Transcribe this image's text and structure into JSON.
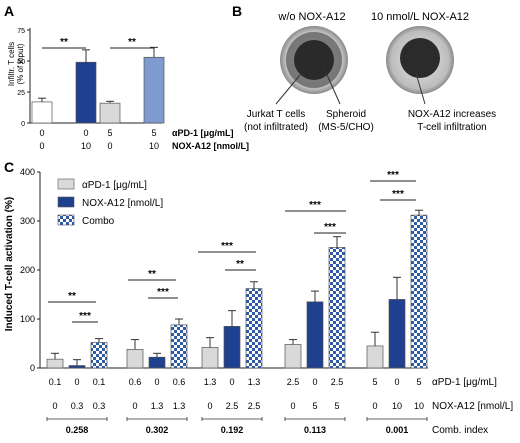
{
  "panels": {
    "A": {
      "letter": "A",
      "ylabel_line1": "Infiltr. T cells",
      "ylabel_line2": "(% of input)",
      "row_labels": [
        "αPD-1 [μg/mL]",
        "NOX-A12 [nmol/L]"
      ],
      "significance": [
        "**",
        "**"
      ]
    },
    "B": {
      "letter": "B",
      "image_titles": [
        "w/o NOX-A12",
        "10 nmol/L NOX-A12"
      ],
      "annotations": [
        {
          "line1": "Jurkat T cells",
          "line2": "(not infiltrated)"
        },
        {
          "line1": "Spheroid",
          "line2": "(MS-5/CHO)"
        },
        {
          "line1": "NOX-A12 increases",
          "line2": "T-cell infiltration"
        }
      ]
    },
    "C": {
      "letter": "C",
      "ylabel": "Induced T-cell activation (%)",
      "row_labels": [
        "αPD-1 [μg/mL]",
        "NOX-A12 [nmol/L]",
        "Comb. index"
      ],
      "significance": [
        "**",
        "***",
        "**",
        "***",
        "***",
        "**",
        "***",
        "***",
        "***",
        "***"
      ]
    }
  },
  "colors": {
    "light": "#d9d9d9",
    "dark": "#1f3f8f",
    "light_blue": "#7f9bd0",
    "check": "#2e5aa8",
    "white": "#ffffff"
  },
  "chart_data": [
    {
      "panel": "A",
      "type": "bar",
      "ylim": [
        0,
        75
      ],
      "yticks": [
        0,
        25,
        50,
        75
      ],
      "bars": [
        {
          "apd1": "0",
          "nox": "0",
          "value": 17,
          "err": 3,
          "style": "white"
        },
        {
          "apd1": "0",
          "nox": "10",
          "value": 49,
          "err": 10,
          "style": "dark"
        },
        {
          "apd1": "5",
          "nox": "0",
          "value": 16,
          "err": 1.5,
          "style": "light"
        },
        {
          "apd1": "5",
          "nox": "10",
          "value": 53,
          "err": 8,
          "style": "light_blue"
        }
      ]
    },
    {
      "panel": "C",
      "type": "bar",
      "ylim": [
        0,
        400
      ],
      "yticks": [
        0,
        100,
        200,
        300,
        400
      ],
      "legend": {
        "placement": "top-left",
        "entries": [
          {
            "label": "αPD-1 [μg/mL]",
            "style": "light"
          },
          {
            "label": "NOX-A12 [nmol/L]",
            "style": "dark"
          },
          {
            "label": "Combo",
            "style": "check"
          }
        ]
      },
      "groups": [
        {
          "comb_index": "0.258",
          "bars": [
            {
              "apd1": "0.1",
              "nox": "0",
              "value": 18,
              "err": 12,
              "style": "light"
            },
            {
              "apd1": "0",
              "nox": "0.3",
              "value": 5,
              "err": 12,
              "style": "dark"
            },
            {
              "apd1": "0.1",
              "nox": "0.3",
              "value": 52,
              "err": 8,
              "style": "check"
            }
          ]
        },
        {
          "comb_index": "0.302",
          "bars": [
            {
              "apd1": "0.6",
              "nox": "0",
              "value": 38,
              "err": 20,
              "style": "light"
            },
            {
              "apd1": "0",
              "nox": "1.3",
              "value": 22,
              "err": 8,
              "style": "dark"
            },
            {
              "apd1": "0.6",
              "nox": "1.3",
              "value": 88,
              "err": 12,
              "style": "check"
            }
          ]
        },
        {
          "comb_index": "0.192",
          "bars": [
            {
              "apd1": "1.3",
              "nox": "0",
              "value": 42,
              "err": 20,
              "style": "light"
            },
            {
              "apd1": "0",
              "nox": "2.5",
              "value": 85,
              "err": 32,
              "style": "dark"
            },
            {
              "apd1": "1.3",
              "nox": "2.5",
              "value": 162,
              "err": 14,
              "style": "check"
            }
          ]
        },
        {
          "comb_index": "0.113",
          "bars": [
            {
              "apd1": "2.5",
              "nox": "0",
              "value": 48,
              "err": 10,
              "style": "light"
            },
            {
              "apd1": "0",
              "nox": "5",
              "value": 135,
              "err": 22,
              "style": "dark"
            },
            {
              "apd1": "2.5",
              "nox": "5",
              "value": 246,
              "err": 22,
              "style": "check"
            }
          ]
        },
        {
          "comb_index": "0.001",
          "bars": [
            {
              "apd1": "5",
              "nox": "0",
              "value": 45,
              "err": 28,
              "style": "light"
            },
            {
              "apd1": "0",
              "nox": "10",
              "value": 140,
              "err": 45,
              "style": "dark"
            },
            {
              "apd1": "5",
              "nox": "10",
              "value": 312,
              "err": 10,
              "style": "check"
            }
          ]
        }
      ]
    }
  ]
}
